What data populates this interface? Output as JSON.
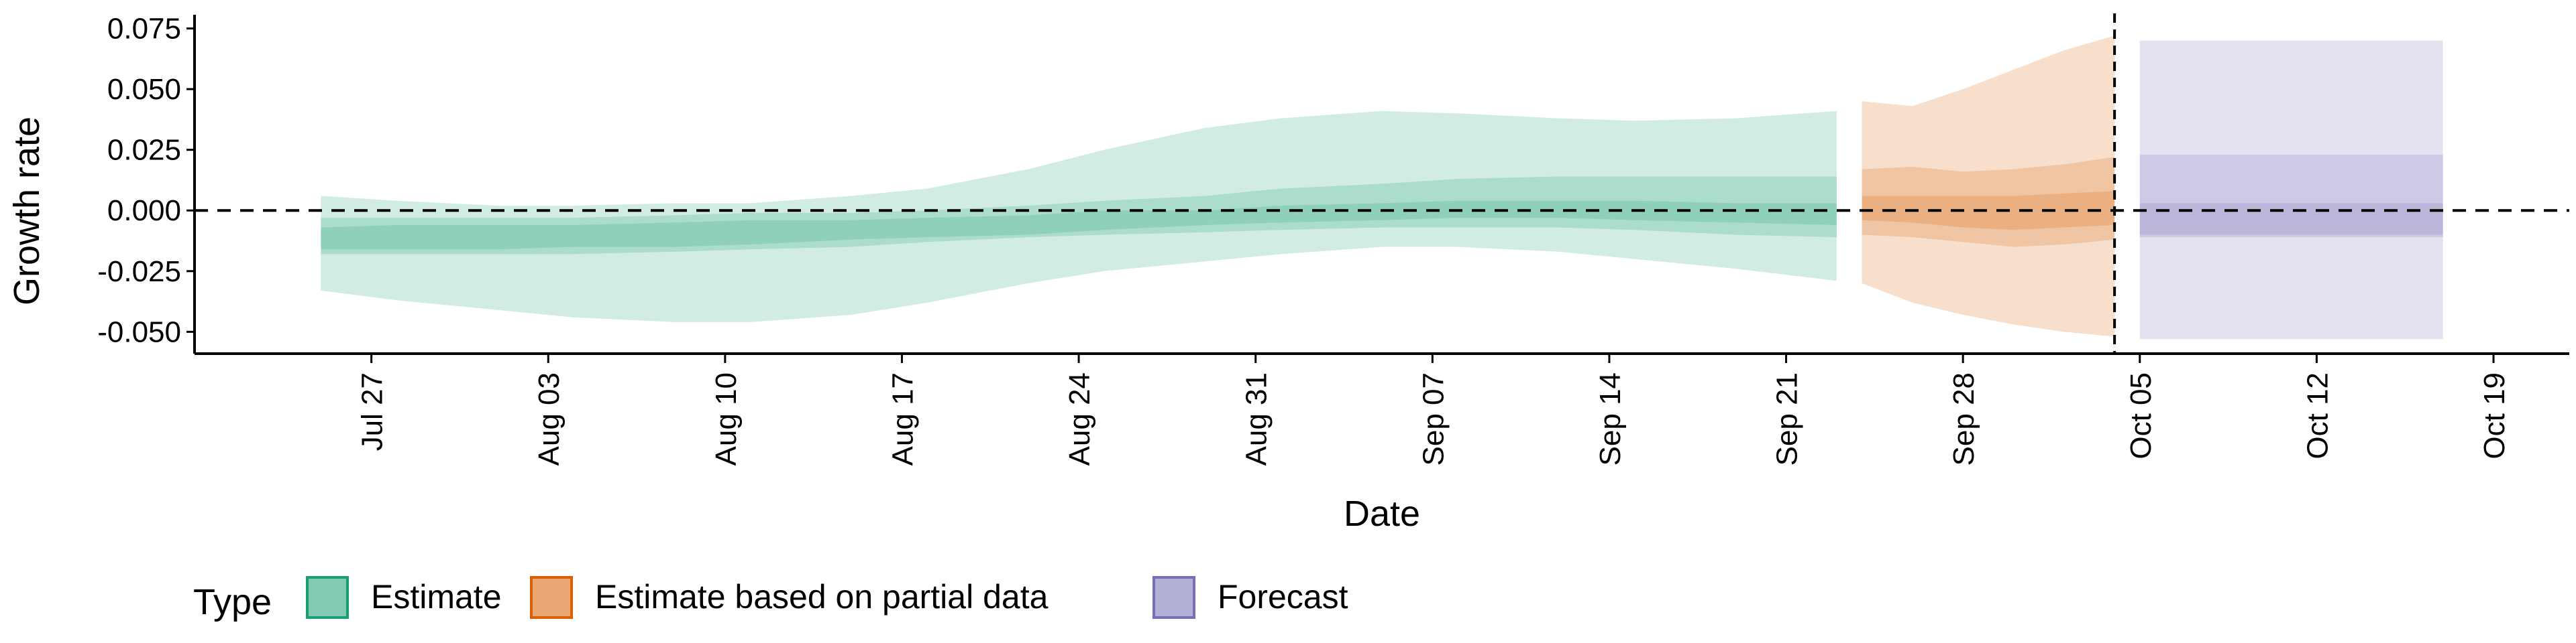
{
  "chart_data": {
    "type": "area",
    "xlabel": "Date",
    "ylabel": "Growth rate",
    "x_tick_labels": [
      "Jul 27",
      "Aug 03",
      "Aug 10",
      "Aug 17",
      "Aug 24",
      "Aug 31",
      "Sep 07",
      "Sep 14",
      "Sep 21",
      "Sep 28",
      "Oct 05",
      "Oct 12",
      "Oct 19"
    ],
    "x_tick_dates": [
      "2020-07-27",
      "2020-08-03",
      "2020-08-10",
      "2020-08-17",
      "2020-08-24",
      "2020-08-31",
      "2020-09-07",
      "2020-09-14",
      "2020-09-21",
      "2020-09-28",
      "2020-10-05",
      "2020-10-12",
      "2020-10-19"
    ],
    "y_ticks": [
      -0.05,
      -0.025,
      0.0,
      0.025,
      0.05,
      0.075
    ],
    "y_tick_labels": [
      "-0.050",
      "-0.025",
      "0.000",
      "0.025",
      "0.050",
      "0.075"
    ],
    "xlim": [
      "2020-07-20",
      "2020-10-22"
    ],
    "ylim": [
      -0.059,
      0.079
    ],
    "hline_y": 0,
    "vline_date": "2020-10-04",
    "grid": false,
    "legend": {
      "title": "Type",
      "position": "bottom",
      "entries": [
        {
          "label": "Estimate",
          "color": "#1b9e77"
        },
        {
          "label": "Estimate based on partial data",
          "color": "#d95f02"
        },
        {
          "label": "Forecast",
          "color": "#7570b3"
        }
      ]
    },
    "series": [
      {
        "name": "Estimate",
        "color": "#1b9e77",
        "x": [
          "2020-07-25",
          "2020-07-28",
          "2020-08-01",
          "2020-08-04",
          "2020-08-08",
          "2020-08-11",
          "2020-08-15",
          "2020-08-18",
          "2020-08-22",
          "2020-08-25",
          "2020-08-29",
          "2020-09-01",
          "2020-09-05",
          "2020-09-08",
          "2020-09-12",
          "2020-09-15",
          "2020-09-19",
          "2020-09-23"
        ],
        "median": [
          -0.011,
          -0.01,
          -0.011,
          -0.01,
          -0.01,
          -0.009,
          -0.008,
          -0.007,
          -0.006,
          -0.004,
          -0.003,
          -0.001,
          0.0,
          0.001,
          0.002,
          0.002,
          0.002,
          0.002
        ],
        "lower_20": [
          -0.016,
          -0.016,
          -0.016,
          -0.015,
          -0.015,
          -0.014,
          -0.012,
          -0.011,
          -0.01,
          -0.008,
          -0.006,
          -0.005,
          -0.004,
          -0.003,
          -0.003,
          -0.004,
          -0.005,
          -0.006
        ],
        "upper_20": [
          -0.007,
          -0.006,
          -0.006,
          -0.006,
          -0.005,
          -0.004,
          -0.004,
          -0.003,
          -0.002,
          0.0,
          0.0,
          0.002,
          0.003,
          0.004,
          0.004,
          0.004,
          0.003,
          0.003
        ],
        "lower_50": [
          -0.018,
          -0.018,
          -0.018,
          -0.018,
          -0.017,
          -0.016,
          -0.015,
          -0.013,
          -0.011,
          -0.01,
          -0.009,
          -0.008,
          -0.007,
          -0.007,
          -0.007,
          -0.008,
          -0.01,
          -0.011
        ],
        "upper_50": [
          -0.003,
          -0.003,
          -0.003,
          -0.003,
          -0.002,
          -0.001,
          -0.001,
          0.0,
          0.002,
          0.004,
          0.006,
          0.009,
          0.011,
          0.013,
          0.014,
          0.014,
          0.014,
          0.014
        ],
        "lower_90": [
          -0.033,
          -0.037,
          -0.041,
          -0.044,
          -0.046,
          -0.046,
          -0.043,
          -0.038,
          -0.03,
          -0.025,
          -0.021,
          -0.018,
          -0.015,
          -0.015,
          -0.017,
          -0.02,
          -0.024,
          -0.029
        ],
        "upper_90": [
          0.006,
          0.004,
          0.002,
          0.002,
          0.003,
          0.003,
          0.006,
          0.009,
          0.017,
          0.025,
          0.034,
          0.038,
          0.041,
          0.04,
          0.038,
          0.037,
          0.038,
          0.041
        ]
      },
      {
        "name": "Estimate based on partial data",
        "color": "#d95f02",
        "x": [
          "2020-09-24",
          "2020-09-26",
          "2020-09-28",
          "2020-09-30",
          "2020-10-02",
          "2020-10-04"
        ],
        "median": [
          0.002,
          0.001,
          0.0,
          -0.001,
          0.0,
          0.001
        ],
        "lower_20": [
          -0.004,
          -0.005,
          -0.007,
          -0.008,
          -0.007,
          -0.006
        ],
        "upper_20": [
          0.006,
          0.006,
          0.006,
          0.006,
          0.007,
          0.008
        ],
        "lower_50": [
          -0.01,
          -0.011,
          -0.013,
          -0.015,
          -0.014,
          -0.012
        ],
        "upper_50": [
          0.017,
          0.018,
          0.016,
          0.017,
          0.019,
          0.022
        ],
        "lower_90": [
          -0.03,
          -0.038,
          -0.043,
          -0.047,
          -0.05,
          -0.052
        ],
        "upper_90": [
          0.045,
          0.043,
          0.05,
          0.058,
          0.066,
          0.072
        ]
      },
      {
        "name": "Forecast",
        "color": "#7570b3",
        "x": [
          "2020-10-05",
          "2020-10-17"
        ],
        "median": [
          0.0,
          0.0
        ],
        "lower_20": [
          -0.01,
          -0.01
        ],
        "upper_20": [
          0.003,
          0.003
        ],
        "lower_50": [
          -0.011,
          -0.011
        ],
        "upper_50": [
          0.023,
          0.023
        ],
        "lower_90": [
          -0.053,
          -0.053
        ],
        "upper_90": [
          0.07,
          0.07
        ]
      }
    ]
  }
}
